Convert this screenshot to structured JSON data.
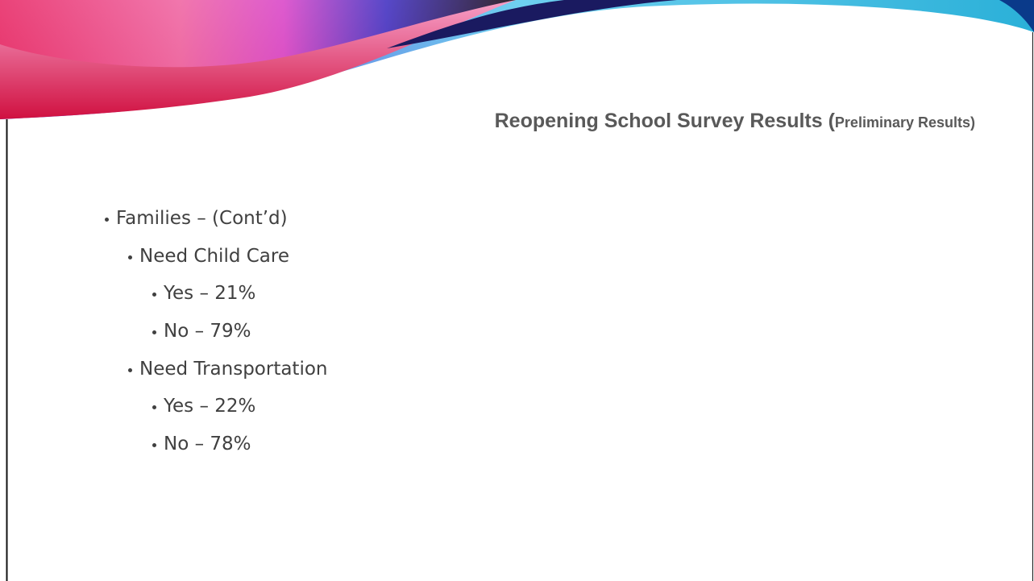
{
  "slide": {
    "title": {
      "main": "Reopening School Survey Results (",
      "sub": "Preliminary Results)"
    },
    "bullets": [
      {
        "text": "Families – (Cont’d)",
        "children": [
          {
            "text": "Need Child Care",
            "children": [
              {
                "text": "Yes – 21%"
              },
              {
                "text": "No – 79%"
              }
            ]
          },
          {
            "text": "Need Transportation",
            "children": [
              {
                "text": "Yes – 22%"
              },
              {
                "text": "No – 78%"
              }
            ]
          }
        ]
      }
    ]
  }
}
